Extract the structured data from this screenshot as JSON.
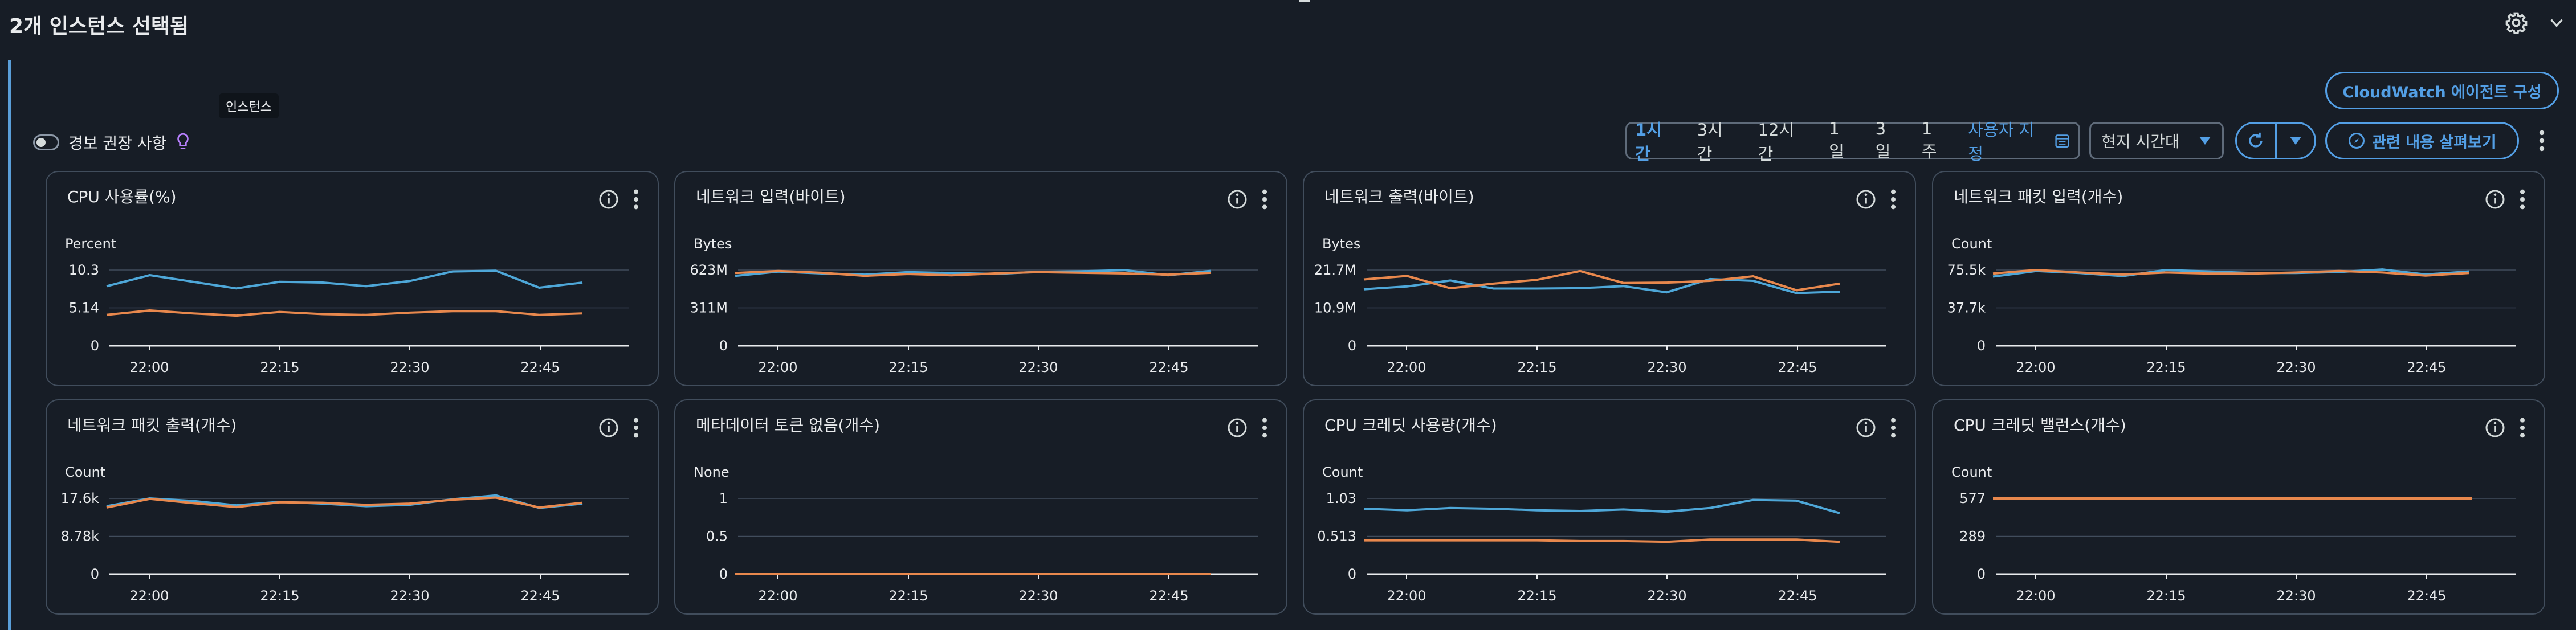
{
  "header": {
    "title": "2개 인스턴스 선택됨"
  },
  "tooltip": "인스턴스",
  "cloudwatch_button": "CloudWatch 에이전트 구성",
  "alarm_toggle_label": "경보 권장 사항",
  "time_ranges": [
    "1시간",
    "3시간",
    "12시간",
    "1일",
    "3일",
    "1주"
  ],
  "time_range_selected": "1시간",
  "custom_range_label": "사용자 지정",
  "timezone": "현지 시간대",
  "explore_button": "관련 내용 살펴보기",
  "colors": {
    "series_a": "#4ea7d8",
    "series_b": "#e8884d",
    "accent": "#539fe5"
  },
  "x_ticks": [
    "22:00",
    "22:15",
    "22:30",
    "22:45"
  ],
  "chart_data": [
    {
      "type": "line",
      "title": "CPU 사용률(%)",
      "ylabel": "Percent",
      "y_ticks": [
        "10.3",
        "5.14",
        "0"
      ],
      "ylim": [
        0,
        10.3
      ],
      "series": [
        {
          "values": [
            8.1,
            9.6,
            8.7,
            7.8,
            8.7,
            8.6,
            8.1,
            8.8,
            10.1,
            10.2,
            7.9,
            8.6
          ]
        },
        {
          "values": [
            4.2,
            4.8,
            4.4,
            4.1,
            4.6,
            4.3,
            4.2,
            4.5,
            4.7,
            4.7,
            4.2,
            4.4
          ]
        }
      ]
    },
    {
      "type": "line",
      "title": "네트워크 입력(바이트)",
      "ylabel": "Bytes",
      "y_ticks": [
        "623M",
        "311M",
        "0"
      ],
      "ylim": [
        0,
        623
      ],
      "series": [
        {
          "values": [
            575,
            610,
            595,
            585,
            605,
            598,
            590,
            608,
            612,
            622,
            580,
            616
          ]
        },
        {
          "values": [
            598,
            615,
            600,
            575,
            590,
            580,
            595,
            605,
            600,
            595,
            585,
            600
          ]
        }
      ]
    },
    {
      "type": "line",
      "title": "네트워크 출력(바이트)",
      "ylabel": "Bytes",
      "y_ticks": [
        "21.7M",
        "10.9M",
        "0"
      ],
      "ylim": [
        0,
        21.7
      ],
      "series": [
        {
          "values": [
            16.2,
            17.0,
            18.7,
            16.4,
            16.4,
            16.5,
            17.1,
            15.3,
            19.1,
            18.6,
            15.1,
            15.5
          ]
        },
        {
          "values": [
            19.0,
            20.0,
            16.5,
            17.8,
            18.9,
            21.4,
            18.0,
            18.1,
            18.6,
            19.9,
            15.9,
            17.8
          ]
        }
      ]
    },
    {
      "type": "line",
      "title": "네트워크 패킷 입력(개수)",
      "ylabel": "Count",
      "y_ticks": [
        "75.5k",
        "37.7k",
        "0"
      ],
      "ylim": [
        0,
        75.5
      ],
      "series": [
        {
          "values": [
            69.0,
            74.5,
            72.5,
            69.5,
            75.5,
            74.0,
            72.5,
            72.5,
            73.5,
            76.0,
            71.0,
            74.0
          ]
        },
        {
          "values": [
            72.0,
            75.5,
            73.0,
            71.0,
            73.0,
            72.0,
            72.0,
            73.0,
            74.5,
            73.0,
            70.0,
            72.5
          ]
        }
      ]
    },
    {
      "type": "line",
      "title": "네트워크 패킷 출력(개수)",
      "ylabel": "Count",
      "y_ticks": [
        "17.6k",
        "8.78k",
        "0"
      ],
      "ylim": [
        0,
        17.6
      ],
      "series": [
        {
          "values": [
            15.8,
            17.6,
            17.0,
            16.0,
            16.8,
            16.4,
            15.8,
            16.1,
            17.4,
            18.3,
            15.4,
            16.4
          ]
        },
        {
          "values": [
            15.5,
            17.5,
            16.5,
            15.6,
            16.7,
            16.6,
            16.1,
            16.4,
            17.3,
            17.8,
            15.5,
            16.6
          ]
        }
      ]
    },
    {
      "type": "line",
      "title": "메타데이터 토큰 없음(개수)",
      "ylabel": "None",
      "y_ticks": [
        "1",
        "0.5",
        "0"
      ],
      "ylim": [
        0,
        1
      ],
      "series": [
        {
          "values": [
            0,
            0,
            0,
            0,
            0,
            0,
            0,
            0,
            0,
            0,
            0,
            0
          ]
        },
        {
          "values": [
            0,
            0,
            0,
            0,
            0,
            0,
            0,
            0,
            0,
            0,
            0,
            0
          ]
        }
      ]
    },
    {
      "type": "line",
      "title": "CPU 크레딧 사용량(개수)",
      "ylabel": "Count",
      "y_ticks": [
        "1.03",
        "0.513",
        "0"
      ],
      "ylim": [
        0,
        1.03
      ],
      "series": [
        {
          "values": [
            0.89,
            0.87,
            0.9,
            0.89,
            0.87,
            0.86,
            0.88,
            0.85,
            0.9,
            1.01,
            1.0,
            0.83
          ]
        },
        {
          "values": [
            0.46,
            0.46,
            0.46,
            0.46,
            0.46,
            0.45,
            0.45,
            0.44,
            0.47,
            0.47,
            0.47,
            0.44
          ]
        }
      ]
    },
    {
      "type": "line",
      "title": "CPU 크레딧 밸런스(개수)",
      "ylabel": "Count",
      "y_ticks": [
        "577",
        "289",
        "0"
      ],
      "ylim": [
        0,
        577
      ],
      "series": [
        {
          "values": [
            576,
            576,
            576,
            576,
            576,
            576,
            576,
            576,
            576,
            576,
            576,
            576
          ]
        },
        {
          "values": [
            577,
            577,
            577,
            577,
            577,
            577,
            577,
            577,
            577,
            577,
            577,
            577
          ]
        }
      ]
    }
  ]
}
